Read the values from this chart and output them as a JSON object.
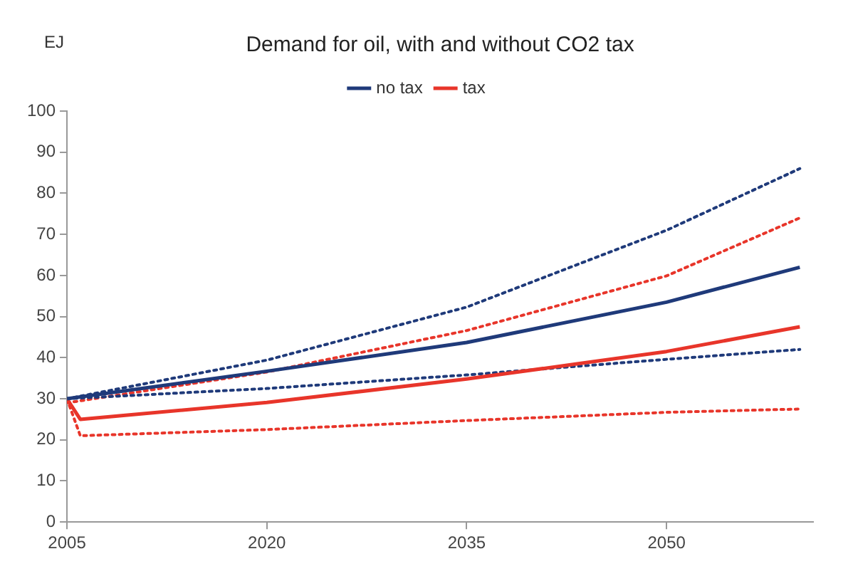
{
  "chart_data": {
    "type": "line",
    "title": "Demand for oil, with and without CO2 tax",
    "ylabel": "EJ",
    "xlim": [
      2005,
      2061
    ],
    "xticks": [
      2005,
      2020,
      2035,
      2050
    ],
    "ylim": [
      0,
      100
    ],
    "yticks": [
      0,
      10,
      20,
      30,
      40,
      50,
      60,
      70,
      80,
      90,
      100
    ],
    "legend": "top",
    "marker": "none",
    "series": [
      {
        "name": "no tax",
        "color": "#1f3a7a",
        "line_style": "solid",
        "x": [
          2005,
          2020,
          2035,
          2050,
          2060
        ],
        "values": [
          30,
          36.7,
          43.7,
          53.5,
          62
        ]
      },
      {
        "name": "tax",
        "color": "#e8352a",
        "line_style": "solid",
        "x": [
          2005,
          2006,
          2020,
          2035,
          2050,
          2060
        ],
        "values": [
          30,
          25,
          29.1,
          34.8,
          41.5,
          47.5
        ]
      },
      {
        "color": "#1f3a7a",
        "line_style": "dotted",
        "x": [
          2005,
          2020,
          2035,
          2050,
          2060
        ],
        "values": [
          30,
          39.4,
          52.3,
          71,
          86
        ]
      },
      {
        "color": "#1f3a7a",
        "line_style": "dotted",
        "x": [
          2005,
          2020,
          2035,
          2050,
          2060
        ],
        "values": [
          30,
          32.5,
          35.8,
          39.6,
          42
        ]
      },
      {
        "color": "#e8352a",
        "line_style": "dotted",
        "x": [
          2005,
          2020,
          2035,
          2050,
          2060
        ],
        "values": [
          29,
          36.5,
          46.6,
          59.9,
          74
        ]
      },
      {
        "color": "#e8352a",
        "line_style": "dotted",
        "x": [
          2005,
          2006,
          2020,
          2035,
          2050,
          2060
        ],
        "values": [
          30,
          21,
          22.5,
          24.7,
          26.7,
          27.5
        ]
      }
    ]
  }
}
